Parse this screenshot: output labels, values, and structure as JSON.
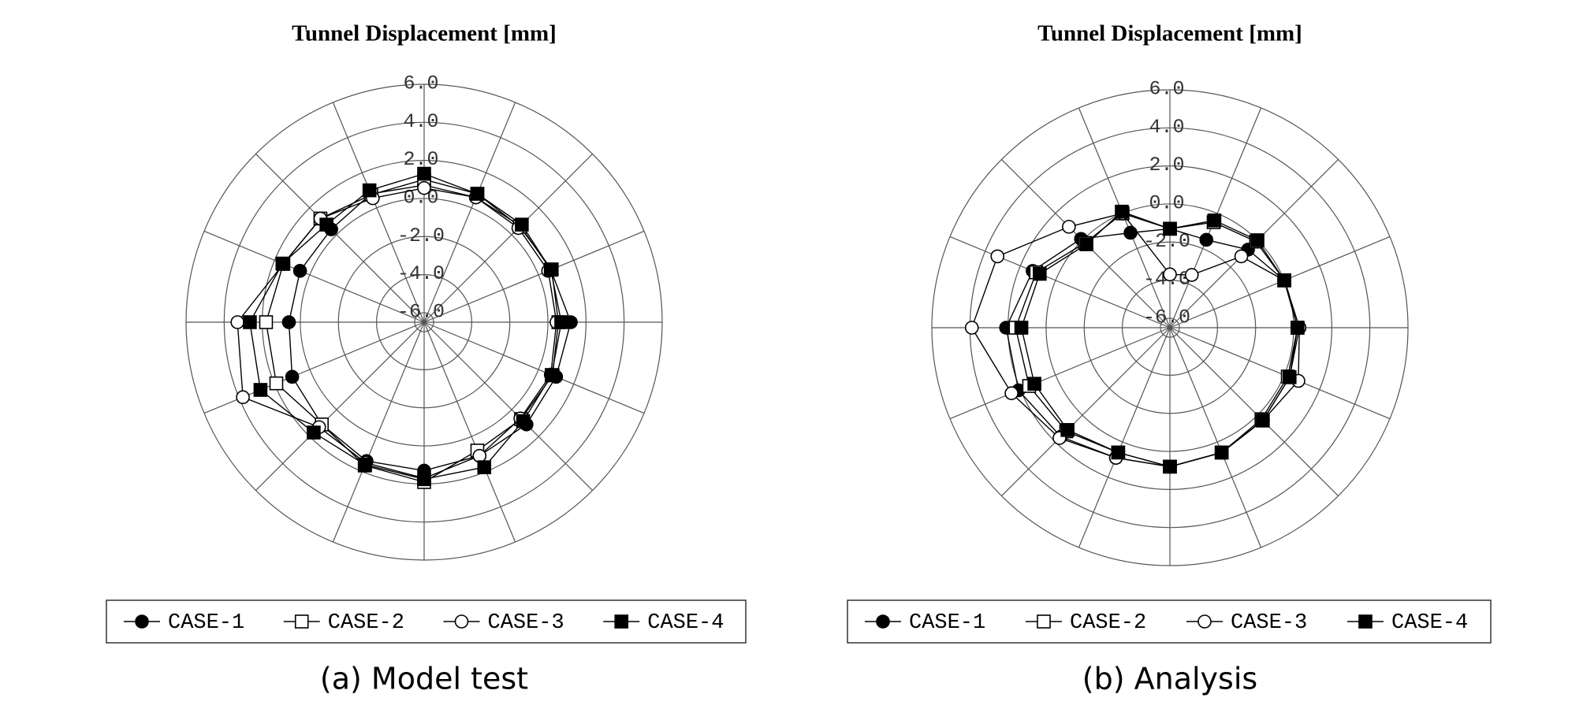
{
  "chart_data": [
    {
      "type": "radar",
      "title": "Tunnel Displacement [mm]",
      "caption": "(a) Model test",
      "rlim": [
        -6.5,
        6
      ],
      "rticks": [
        {
          "value": -6,
          "label": "-6.0"
        },
        {
          "value": -4,
          "label": "-4.0"
        },
        {
          "value": -2,
          "label": "-2.0"
        },
        {
          "value": 0,
          "label": "0.0"
        },
        {
          "value": 2,
          "label": "2.0"
        },
        {
          "value": 4,
          "label": "4.0"
        },
        {
          "value": 6,
          "label": "6.0"
        }
      ],
      "series": [
        {
          "name": "CASE-1",
          "color": "#000000",
          "marker": "filled-circle",
          "values": [
            0.7,
            0.6,
            0.65,
            0.7,
            1.2,
            1.0,
            1.1,
            1.1,
            1.3,
            1.4,
            1.1,
            1.0,
            0.6,
            0.55,
            0.4,
            0.8
          ]
        },
        {
          "name": "CASE-2",
          "color": "#000000",
          "marker": "open-square",
          "values": [
            1.0,
            0.8,
            0.6,
            0.75,
            0.55,
            0.8,
            0.7,
            0.8,
            1.9,
            1.65,
            1.1,
            1.9,
            1.8,
            1.5,
            1.2,
            0.75
          ]
        },
        {
          "name": "CASE-3",
          "color": "#000000",
          "marker": "open-circle",
          "values": [
            0.55,
            0.6,
            0.5,
            0.55,
            0.45,
            0.7,
            0.65,
            1.1,
            1.7,
            1.5,
            1.3,
            3.8,
            3.3,
            1.5,
            1.2,
            0.55
          ]
        },
        {
          "name": "CASE-4",
          "color": "#000000",
          "marker": "filled-square",
          "values": [
            1.3,
            0.8,
            0.75,
            0.7,
            0.7,
            0.75,
            0.85,
            1.75,
            1.75,
            1.6,
            1.7,
            2.8,
            2.65,
            1.55,
            0.75,
            1.0
          ]
        }
      ]
    },
    {
      "type": "radar",
      "title": "Tunnel Displacement [mm]",
      "caption": "(b) Analysis",
      "rlim": [
        -6.5,
        6
      ],
      "rticks": [
        {
          "value": -6,
          "label": "-6.0"
        },
        {
          "value": -4,
          "label": "-4.0"
        },
        {
          "value": -2,
          "label": "-2.0"
        },
        {
          "value": 0,
          "label": "0.0"
        },
        {
          "value": 2,
          "label": "2.0"
        },
        {
          "value": 4,
          "label": "4.0"
        },
        {
          "value": 6,
          "label": "6.0"
        }
      ],
      "series": [
        {
          "name": "CASE-1",
          "color": "#000000",
          "marker": "filled-circle",
          "values": [
            -1.3,
            -1.5,
            -0.7,
            0.0,
            0.3,
            0.3,
            0.4,
            0.6,
            0.8,
            0.9,
            1.6,
            2.1,
            2.1,
            1.3,
            0.1,
            -1.1
          ]
        },
        {
          "name": "CASE-2",
          "color": "#000000",
          "marker": "open-square",
          "values": [
            -1.3,
            -0.5,
            -0.1,
            0.0,
            0.2,
            0.2,
            0.3,
            0.6,
            0.8,
            0.6,
            1.2,
            1.5,
            1.6,
            1.1,
            -0.2,
            0.0
          ]
        },
        {
          "name": "CASE-3",
          "color": "#000000",
          "marker": "open-circle",
          "values": [
            -3.7,
            -3.5,
            -1.2,
            0.0,
            0.3,
            0.8,
            0.4,
            0.6,
            0.8,
            0.9,
            1.7,
            2.5,
            3.9,
            3.3,
            1.0,
            0.0
          ]
        },
        {
          "name": "CASE-4",
          "color": "#000000",
          "marker": "filled-square",
          "values": [
            -1.3,
            -0.4,
            0.0,
            0.0,
            0.2,
            0.3,
            0.4,
            0.6,
            0.8,
            0.6,
            1.1,
            1.2,
            1.3,
            0.9,
            -0.3,
            0.1
          ]
        }
      ]
    }
  ]
}
